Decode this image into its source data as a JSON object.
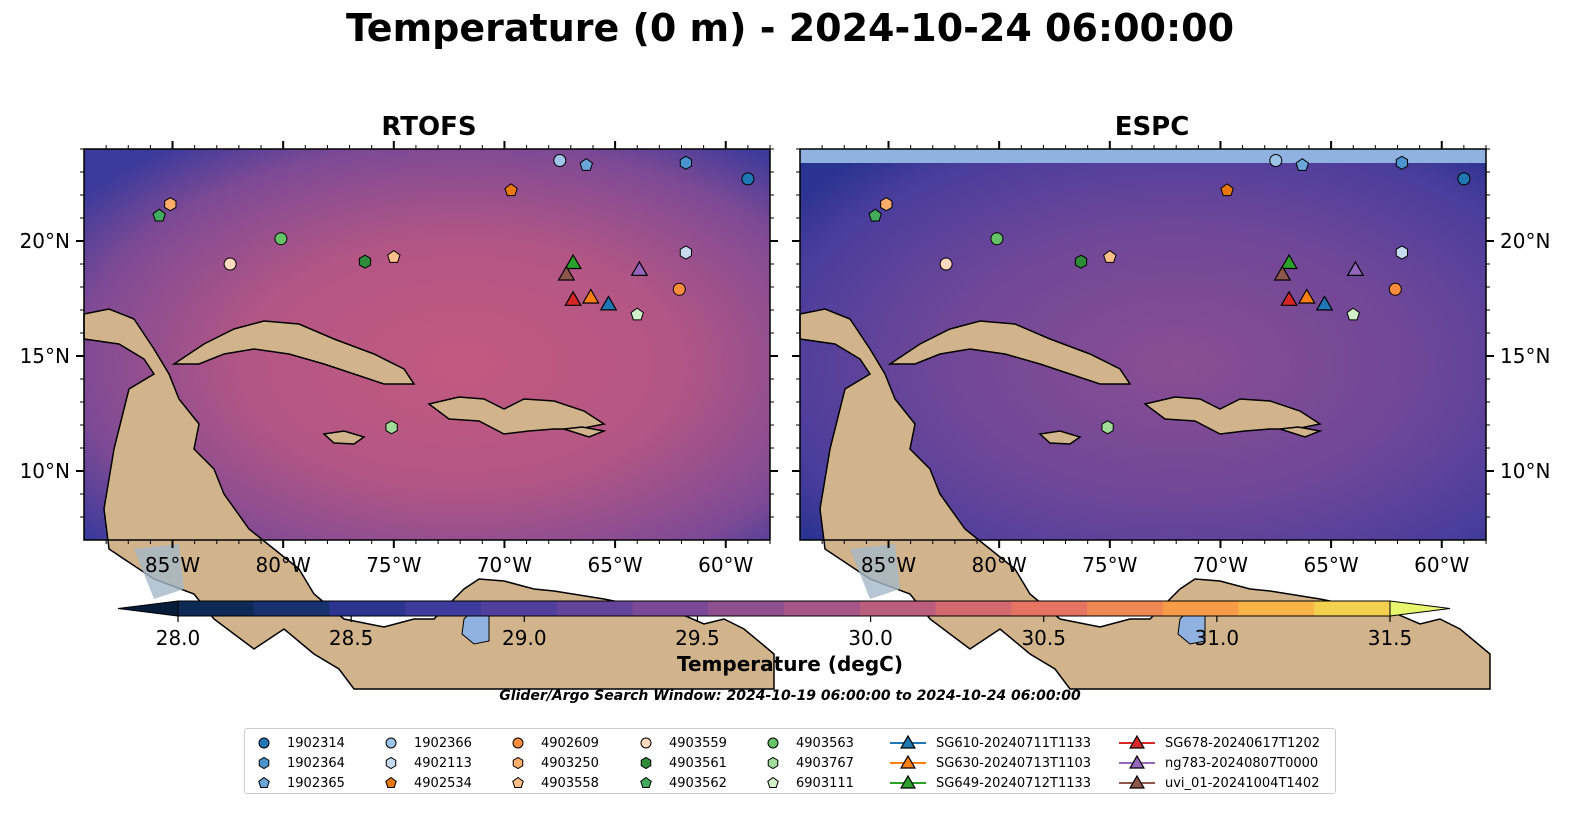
{
  "title": "Temperature (0 m) - 2024-10-24 06:00:00",
  "panels": [
    {
      "id": "rtofs",
      "title": "RTOFS"
    },
    {
      "id": "espc",
      "title": "ESPC"
    }
  ],
  "colorbar": {
    "label": "Temperature (degC)",
    "min": 28.0,
    "max": 31.5,
    "step": 0.25,
    "ticks": [
      "28.0",
      "28.5",
      "29.0",
      "29.5",
      "30.0",
      "30.5",
      "31.0",
      "31.5"
    ],
    "colors": [
      "#0d2a57",
      "#17306e",
      "#2b3590",
      "#3d3c9d",
      "#503f9c",
      "#64439a",
      "#7a4a96",
      "#904f8f",
      "#a55587",
      "#bb5d7c",
      "#d2696f",
      "#e57562",
      "#f08856",
      "#f69c49",
      "#f7b548",
      "#f4d050"
    ],
    "under_color": "#071c3b",
    "over_color": "#e8f66e"
  },
  "search_window": "Glider/Argo Search Window: 2024-10-19 06:00:00 to 2024-10-24 06:00:00",
  "chart_data": {
    "type": "map",
    "x_ticks": [
      "85°W",
      "80°W",
      "75°W",
      "70°W",
      "65°W",
      "60°W"
    ],
    "y_ticks": [
      "20°N",
      "15°N",
      "10°N"
    ],
    "x_range": [
      -89,
      -58
    ],
    "y_range": [
      7,
      24
    ],
    "floats": [
      {
        "id": "1902314",
        "shape": "circle",
        "color": "#1f77b4",
        "lon": -59,
        "lat": 22.7
      },
      {
        "id": "1902364",
        "shape": "hexagon",
        "color": "#4a93cf",
        "lon": -61.8,
        "lat": 23.4
      },
      {
        "id": "1902365",
        "shape": "pentagon",
        "color": "#6ba5da",
        "lon": -66.3,
        "lat": 23.3
      },
      {
        "id": "1902366",
        "shape": "circle",
        "color": "#9ec5e8",
        "lon": -67.5,
        "lat": 23.5
      },
      {
        "id": "4902113",
        "shape": "hexagon",
        "color": "#c6dbef",
        "lon": -61.8,
        "lat": 19.5
      },
      {
        "id": "4902534",
        "shape": "pentagon",
        "color": "#e6780f",
        "lon": -69.7,
        "lat": 22.2
      },
      {
        "id": "4902609",
        "shape": "circle",
        "color": "#fd8d3c",
        "lon": -62.1,
        "lat": 17.9
      },
      {
        "id": "4903250",
        "shape": "hexagon",
        "color": "#fdae6b",
        "lon": -85.1,
        "lat": 21.6
      },
      {
        "id": "4903558",
        "shape": "pentagon",
        "color": "#fdc08c",
        "lon": -75,
        "lat": 19.3
      },
      {
        "id": "4903559",
        "shape": "circle",
        "color": "#fdd9c0",
        "lon": -82.4,
        "lat": 19
      },
      {
        "id": "4903561",
        "shape": "hexagon",
        "color": "#2e8b3a",
        "lon": -76.3,
        "lat": 19.1
      },
      {
        "id": "4903562",
        "shape": "pentagon",
        "color": "#42ab5d",
        "lon": -85.6,
        "lat": 21.1
      },
      {
        "id": "4903563",
        "shape": "circle",
        "color": "#66c266",
        "lon": -80.1,
        "lat": 20.1
      },
      {
        "id": "4903767",
        "shape": "hexagon",
        "color": "#a1dc9b",
        "lon": -75.1,
        "lat": 11.9
      },
      {
        "id": "6903111",
        "shape": "pentagon",
        "color": "#d1f0c9",
        "lon": -64,
        "lat": 16.8
      }
    ],
    "gliders": [
      {
        "id": "SG610-20240711T1133",
        "color": "#1f77b4",
        "lon": -65.3,
        "lat": 17.2
      },
      {
        "id": "SG630-20240713T1103",
        "color": "#ff7f0e",
        "lon": -66.1,
        "lat": 17.5
      },
      {
        "id": "SG649-20240712T1133",
        "color": "#2ca02c",
        "lon": -66.9,
        "lat": 19
      },
      {
        "id": "SG678-20240617T1202",
        "color": "#d62728",
        "lon": -66.9,
        "lat": 17.4
      },
      {
        "id": "ng783-20240807T0000",
        "color": "#9467bd",
        "lon": -63.9,
        "lat": 18.7
      },
      {
        "id": "uvi_01-20241004T1402",
        "color": "#8c564b",
        "lon": -67.2,
        "lat": 18.5
      }
    ]
  }
}
